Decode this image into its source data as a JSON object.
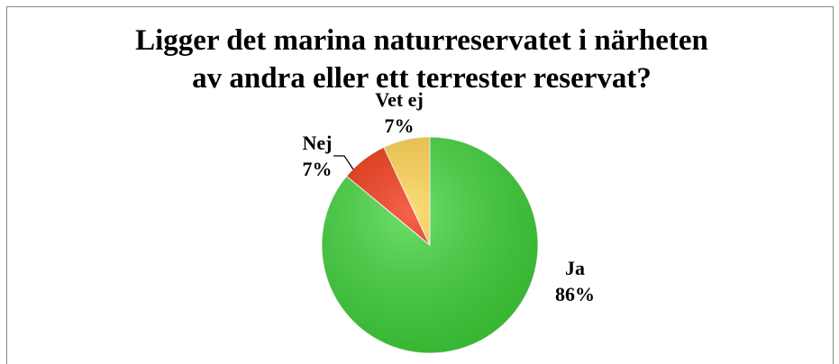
{
  "chart_data": {
    "type": "pie",
    "title": [
      "Ligger det marina naturreservatet i närheten",
      "av andra eller ett terrester reservat?"
    ],
    "categories": [
      "Ja",
      "Nej",
      "Vet ej"
    ],
    "values": [
      86,
      7,
      7
    ],
    "value_labels": [
      "86%",
      "7%",
      "7%"
    ],
    "colors": [
      "#3fd63a",
      "#f0300c",
      "#ffd14a"
    ]
  }
}
